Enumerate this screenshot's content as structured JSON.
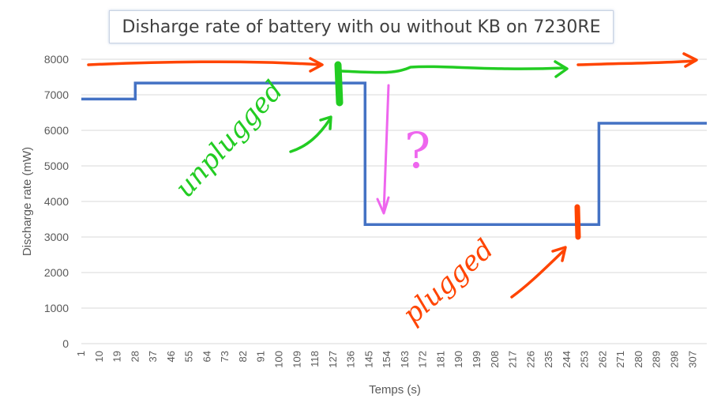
{
  "chart_data": {
    "type": "line",
    "title": "Disharge rate of battery with ou without KB on 7230RE",
    "xlabel": "Temps (s)",
    "ylabel": "Discharge rate (mW)",
    "ylim": [
      0,
      8000
    ],
    "yticks": [
      0,
      1000,
      2000,
      3000,
      4000,
      5000,
      6000,
      7000,
      8000
    ],
    "x_categories": [
      1,
      10,
      19,
      28,
      37,
      46,
      55,
      64,
      73,
      82,
      91,
      100,
      109,
      118,
      127,
      136,
      145,
      154,
      163,
      172,
      181,
      190,
      199,
      208,
      217,
      226,
      235,
      244,
      253,
      262,
      271,
      280,
      289,
      298,
      307
    ],
    "x_max": 314,
    "grid": "horizontal",
    "series": [
      {
        "color": "#4472c4",
        "points": [
          [
            1,
            6880
          ],
          [
            28,
            6880
          ],
          [
            28,
            7330
          ],
          [
            143,
            7330
          ],
          [
            143,
            3350
          ],
          [
            260,
            3350
          ],
          [
            260,
            6200
          ],
          [
            314,
            6200
          ]
        ]
      }
    ]
  },
  "annotations": {
    "unplugged_text": "unplugged",
    "plugged_text": "plugged",
    "question_mark": "?",
    "colors": {
      "green": "#22cc22",
      "orange": "#ff4400",
      "pink": "#ee66ee"
    }
  }
}
